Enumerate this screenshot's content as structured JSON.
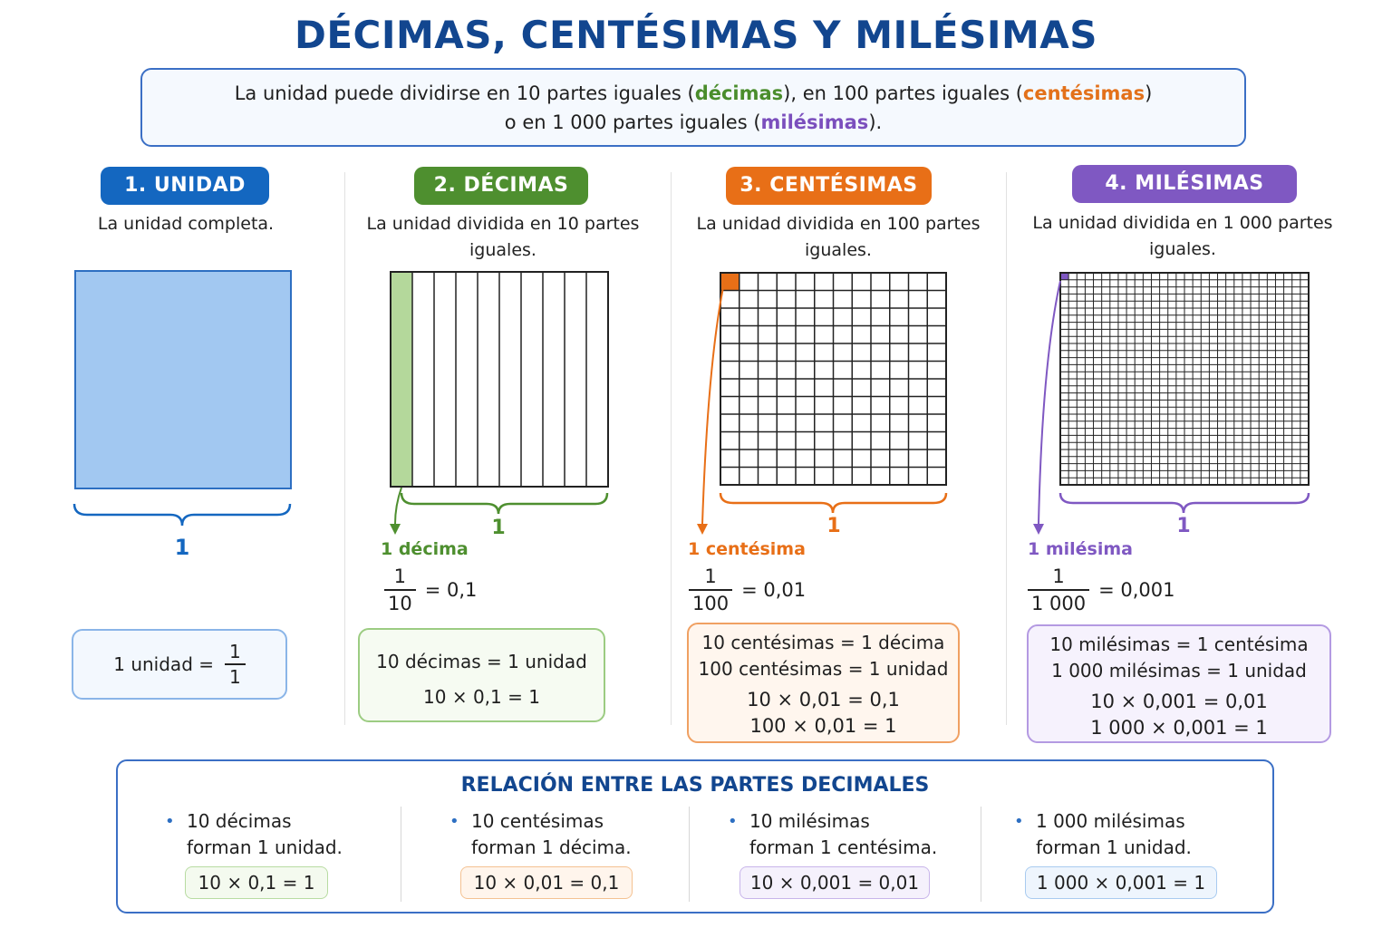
{
  "title": "DÉCIMAS, CENTÉSIMAS Y MILÉSIMAS",
  "intro": {
    "l1_a": "La unidad puede dividirse en 10 partes iguales (",
    "l1_decimas": "décimas",
    "l1_b": "), en 100 partes iguales (",
    "l1_centesimas": "centésimas",
    "l1_c": ")",
    "l2_a": "o en 1 000 partes iguales (",
    "l2_milesimas": "milésimas",
    "l2_b": ")."
  },
  "colors": {
    "unidad": "#1467c0",
    "decimas": "#4e8f2f",
    "centesimas": "#e86f17",
    "milesimas": "#7f58c2"
  },
  "sections": [
    {
      "pill": "1. UNIDAD",
      "desc_l1": "La unidad completa.",
      "desc_l2": "",
      "brace_label": "1",
      "box": {
        "text": "1 unidad =",
        "num": "1",
        "den": "1"
      }
    },
    {
      "pill": "2. DÉCIMAS",
      "desc_l1": "La unidad dividida en 10 partes",
      "desc_l2": "iguales.",
      "grid_divisions": 10,
      "brace_label": "1",
      "part_label": "1 décima",
      "frac": {
        "num": "1",
        "den": "10",
        "eq": "= 0,1"
      },
      "box_lines": [
        "10 décimas = 1 unidad",
        "10 × 0,1 = 1"
      ]
    },
    {
      "pill": "3. CENTÉSIMAS",
      "desc_l1": "La unidad dividida en 100 partes",
      "desc_l2": "iguales.",
      "grid_divisions": 12,
      "brace_label": "1",
      "part_label": "1 centésima",
      "frac": {
        "num": "1",
        "den": "100",
        "eq": "= 0,01"
      },
      "box_lines": [
        "10 centésimas = 1 décima",
        "100 centésimas = 1 unidad",
        "10 × 0,01 = 0,1",
        "100 × 0,01 =  1"
      ]
    },
    {
      "pill": "4. MILÉSIMAS",
      "desc_l1": "La unidad dividida en 1 000 partes",
      "desc_l2": "iguales.",
      "grid_divisions": 30,
      "brace_label": "1",
      "part_label": "1 milésima",
      "frac": {
        "num": "1",
        "den": "1 000",
        "eq": "= 0,001"
      },
      "box_lines": [
        "10 milésimas = 1 centésima",
        "1 000 milésimas = 1 unidad",
        "10 × 0,001 = 0,01",
        "1 000 × 0,001 =  1"
      ]
    }
  ],
  "relation": {
    "title": "RELACIÓN ENTRE LAS PARTES DECIMALES",
    "bullet": "•",
    "items": [
      {
        "l1": "10 décimas",
        "l2": "forman 1 unidad.",
        "chip": "10 × 0,1 = 1"
      },
      {
        "l1": "10 centésimas",
        "l2": "forman 1 décima.",
        "chip": "10 × 0,01 = 0,1"
      },
      {
        "l1": "10 milésimas",
        "l2": "forman 1 centésima.",
        "chip": "10 × 0,001 = 0,01"
      },
      {
        "l1": "1 000 milésimas",
        "l2": "forman 1 unidad.",
        "chip": "1 000 × 0,001 = 1"
      }
    ]
  }
}
